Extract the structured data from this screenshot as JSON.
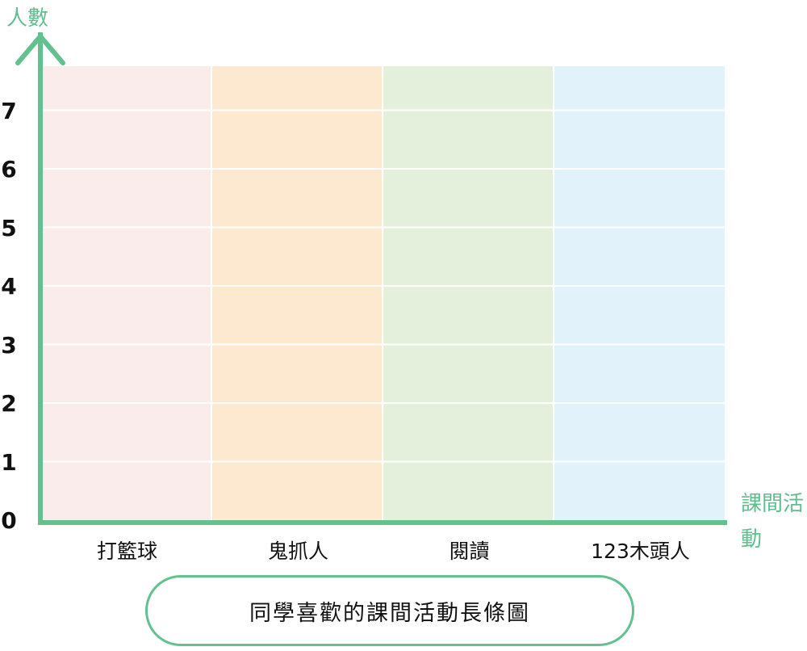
{
  "chart_data": {
    "type": "bar",
    "title": "同學喜歡的課間活動長條圖",
    "ylabel": "人數",
    "xlabel": "課間活動",
    "categories": [
      "打籃球",
      "鬼抓人",
      "閱讀",
      "123木頭人"
    ],
    "values": [
      null,
      null,
      null,
      null
    ],
    "yticks": [
      0,
      1,
      2,
      3,
      4,
      5,
      6,
      7
    ],
    "ylim": [
      0,
      8
    ],
    "grid": true,
    "column_colors": [
      "#faeceb",
      "#fde8d0",
      "#e5f0dc",
      "#e2f2fa"
    ],
    "axis_color": "#63c08f"
  }
}
